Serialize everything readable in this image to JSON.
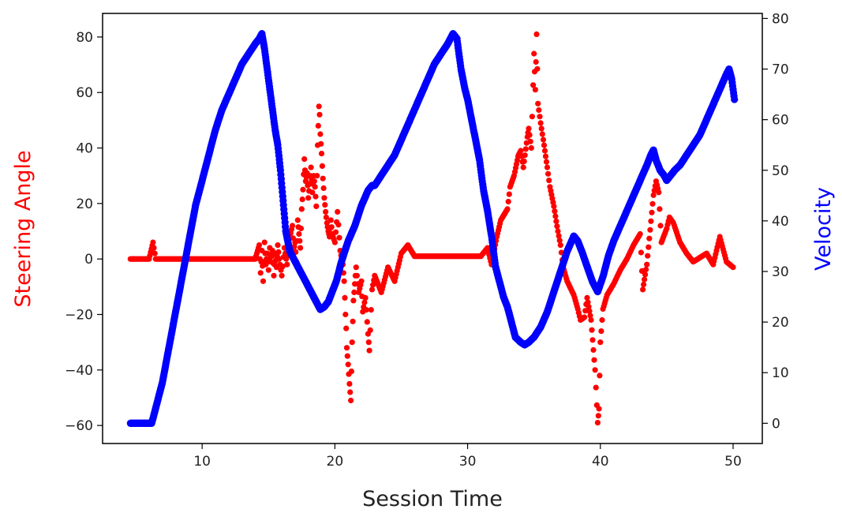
{
  "chart_data": {
    "type": "scatter",
    "title": "",
    "xlabel": "Session Time",
    "ylabel": "Steering Angle",
    "ylabel_right": "Velocity",
    "xlim": [
      2.5,
      52.2
    ],
    "ylim": [
      -66.5,
      88.5
    ],
    "ylim_right": [
      -4,
      81
    ],
    "x_ticks": [
      10,
      20,
      30,
      40,
      50
    ],
    "y_ticks_left": [
      -60,
      -40,
      -20,
      0,
      20,
      40,
      60,
      80
    ],
    "y_ticks_right": [
      0,
      10,
      20,
      30,
      40,
      50,
      60,
      70,
      80
    ],
    "grid": false,
    "colors": {
      "steering": "#ff0000",
      "velocity": "#0000ff",
      "ylabel": "#ff0000",
      "ylabel_right": "#0000ff"
    },
    "series": [
      {
        "axis": "left",
        "color": "#ff0000",
        "points": [
          [
            4.6,
            0
          ],
          [
            5.0,
            0
          ],
          [
            5.3,
            0
          ],
          [
            5.6,
            0
          ],
          [
            6.0,
            0
          ],
          [
            6.3,
            6
          ],
          [
            6.5,
            0
          ],
          [
            7,
            0
          ],
          [
            8,
            0
          ],
          [
            9,
            0
          ],
          [
            10,
            0
          ],
          [
            11,
            0
          ],
          [
            12,
            0
          ],
          [
            13,
            0
          ],
          [
            14,
            0
          ],
          [
            14.3,
            5
          ],
          [
            14.4,
            -5
          ],
          [
            14.5,
            3
          ],
          [
            14.6,
            -8
          ],
          [
            14.7,
            6
          ],
          [
            14.8,
            -2
          ],
          [
            14.9,
            2
          ],
          [
            15.0,
            -4
          ],
          [
            15.1,
            4
          ],
          [
            15.2,
            -1
          ],
          [
            15.3,
            3
          ],
          [
            15.4,
            -6
          ],
          [
            15.5,
            2
          ],
          [
            15.6,
            -3
          ],
          [
            15.7,
            5
          ],
          [
            15.8,
            0
          ],
          [
            16.0,
            -6
          ],
          [
            16.2,
            4
          ],
          [
            16.4,
            -2
          ],
          [
            16.6,
            8
          ],
          [
            16.8,
            12
          ],
          [
            16.9,
            3
          ],
          [
            17.0,
            6
          ],
          [
            17.1,
            -1
          ],
          [
            17.2,
            14
          ],
          [
            17.3,
            9
          ],
          [
            17.4,
            4
          ],
          [
            17.5,
            18
          ],
          [
            17.6,
            25
          ],
          [
            17.7,
            36
          ],
          [
            17.8,
            28
          ],
          [
            17.9,
            31
          ],
          [
            18.0,
            22
          ],
          [
            18.1,
            27
          ],
          [
            18.2,
            33
          ],
          [
            18.3,
            24
          ],
          [
            18.4,
            30
          ],
          [
            18.5,
            26
          ],
          [
            18.6,
            19
          ],
          [
            18.7,
            41
          ],
          [
            18.8,
            55
          ],
          [
            18.85,
            52
          ],
          [
            18.9,
            45
          ],
          [
            19.0,
            38
          ],
          [
            19.1,
            29
          ],
          [
            19.2,
            22
          ],
          [
            19.3,
            17
          ],
          [
            19.4,
            13
          ],
          [
            19.5,
            10
          ],
          [
            19.6,
            8
          ],
          [
            19.7,
            14
          ],
          [
            19.8,
            9
          ],
          [
            20.0,
            6
          ],
          [
            20.2,
            17
          ],
          [
            20.4,
            3
          ],
          [
            20.6,
            -2
          ],
          [
            20.7,
            -8
          ],
          [
            20.8,
            -20
          ],
          [
            20.85,
            -25
          ],
          [
            20.9,
            -32
          ],
          [
            21.0,
            -38
          ],
          [
            21.1,
            -45
          ],
          [
            21.2,
            -51
          ],
          [
            21.3,
            -30
          ],
          [
            21.4,
            -15
          ],
          [
            21.5,
            -9
          ],
          [
            21.6,
            -3
          ],
          [
            21.8,
            -12
          ],
          [
            22.0,
            -8
          ],
          [
            22.1,
            -19
          ],
          [
            22.3,
            -14
          ],
          [
            22.5,
            -27
          ],
          [
            22.6,
            -33
          ],
          [
            22.8,
            -11
          ],
          [
            23.0,
            -6
          ],
          [
            23.5,
            -12
          ],
          [
            24.0,
            -3
          ],
          [
            24.5,
            -8
          ],
          [
            25.0,
            2
          ],
          [
            25.5,
            5
          ],
          [
            26,
            1
          ],
          [
            27,
            1
          ],
          [
            28,
            1
          ],
          [
            29,
            1
          ],
          [
            30,
            1
          ],
          [
            31,
            1
          ],
          [
            31.5,
            4
          ],
          [
            31.8,
            -2
          ],
          [
            32.2,
            8
          ],
          [
            32.5,
            14
          ],
          [
            33.0,
            18
          ],
          [
            33.2,
            26
          ],
          [
            33.5,
            30
          ],
          [
            33.8,
            37
          ],
          [
            34.0,
            39
          ],
          [
            34.2,
            33
          ],
          [
            34.5,
            44
          ],
          [
            34.6,
            47
          ],
          [
            34.8,
            40
          ],
          [
            35.0,
            74
          ],
          [
            35.1,
            61
          ],
          [
            35.2,
            81
          ],
          [
            35.3,
            56
          ],
          [
            35.5,
            49
          ],
          [
            35.7,
            43
          ],
          [
            36.0,
            33
          ],
          [
            36.2,
            26
          ],
          [
            36.5,
            19
          ],
          [
            36.8,
            10
          ],
          [
            37.0,
            5
          ],
          [
            37.2,
            -3
          ],
          [
            37.5,
            -8
          ],
          [
            38.0,
            -13
          ],
          [
            38.3,
            -18
          ],
          [
            38.5,
            -22
          ],
          [
            38.8,
            -21
          ],
          [
            39.0,
            -14
          ],
          [
            39.3,
            -22
          ],
          [
            39.6,
            -40
          ],
          [
            39.8,
            -59
          ],
          [
            39.9,
            -54
          ],
          [
            40.0,
            -30
          ],
          [
            40.2,
            -18
          ],
          [
            40.5,
            -13
          ],
          [
            41.0,
            -9
          ],
          [
            41.5,
            -4
          ],
          [
            42.0,
            0
          ],
          [
            42.5,
            5
          ],
          [
            43.0,
            9
          ],
          [
            43.2,
            -11
          ],
          [
            43.5,
            -2
          ],
          [
            44.0,
            23
          ],
          [
            44.2,
            28
          ],
          [
            44.4,
            24
          ],
          [
            44.6,
            6
          ],
          [
            45.0,
            11
          ],
          [
            45.2,
            15
          ],
          [
            45.5,
            13
          ],
          [
            46.0,
            6
          ],
          [
            46.5,
            2
          ],
          [
            47.0,
            -1
          ],
          [
            48.0,
            2
          ],
          [
            48.5,
            -2
          ],
          [
            49.0,
            8
          ],
          [
            49.5,
            -1
          ],
          [
            50.0,
            -3
          ]
        ]
      },
      {
        "axis": "right",
        "color": "#0000ff",
        "points": [
          [
            4.6,
            0
          ],
          [
            5.0,
            0
          ],
          [
            5.5,
            0
          ],
          [
            6.0,
            0
          ],
          [
            6.2,
            0
          ],
          [
            6.5,
            3
          ],
          [
            7.0,
            8
          ],
          [
            7.5,
            15
          ],
          [
            8.0,
            22
          ],
          [
            8.5,
            29
          ],
          [
            9.0,
            36
          ],
          [
            9.5,
            43
          ],
          [
            10.0,
            48
          ],
          [
            10.5,
            53
          ],
          [
            11.0,
            58
          ],
          [
            11.5,
            62
          ],
          [
            12.0,
            65
          ],
          [
            12.5,
            68
          ],
          [
            13.0,
            71
          ],
          [
            13.5,
            73
          ],
          [
            14.0,
            75
          ],
          [
            14.3,
            76
          ],
          [
            14.5,
            77
          ],
          [
            14.7,
            74
          ],
          [
            14.9,
            70
          ],
          [
            15.1,
            66
          ],
          [
            15.3,
            62
          ],
          [
            15.5,
            58
          ],
          [
            15.7,
            55
          ],
          [
            15.9,
            50
          ],
          [
            16.1,
            44
          ],
          [
            16.3,
            38
          ],
          [
            16.6,
            34
          ],
          [
            17.0,
            32
          ],
          [
            17.4,
            30
          ],
          [
            17.8,
            28
          ],
          [
            18.2,
            26
          ],
          [
            18.6,
            24
          ],
          [
            18.9,
            22.5
          ],
          [
            19.2,
            23
          ],
          [
            19.5,
            24
          ],
          [
            19.8,
            26
          ],
          [
            20.1,
            28
          ],
          [
            20.5,
            32
          ],
          [
            21.0,
            36
          ],
          [
            21.5,
            39
          ],
          [
            22.0,
            43
          ],
          [
            22.5,
            46
          ],
          [
            22.8,
            47
          ],
          [
            23.0,
            47
          ],
          [
            23.5,
            49
          ],
          [
            24.0,
            51
          ],
          [
            24.5,
            53
          ],
          [
            25.0,
            56
          ],
          [
            25.5,
            59
          ],
          [
            26.0,
            62
          ],
          [
            26.5,
            65
          ],
          [
            27.0,
            68
          ],
          [
            27.5,
            71
          ],
          [
            28.0,
            73
          ],
          [
            28.5,
            75
          ],
          [
            28.9,
            77
          ],
          [
            29.2,
            76
          ],
          [
            29.5,
            70
          ],
          [
            29.8,
            66
          ],
          [
            30.0,
            64
          ],
          [
            30.3,
            60
          ],
          [
            30.6,
            56
          ],
          [
            30.9,
            52
          ],
          [
            31.2,
            46
          ],
          [
            31.5,
            42
          ],
          [
            31.8,
            37
          ],
          [
            32.1,
            31
          ],
          [
            32.4,
            28
          ],
          [
            32.7,
            25
          ],
          [
            33.0,
            23
          ],
          [
            33.3,
            20
          ],
          [
            33.6,
            17
          ],
          [
            34.0,
            16
          ],
          [
            34.3,
            15.5
          ],
          [
            34.6,
            16
          ],
          [
            35.0,
            17
          ],
          [
            35.5,
            19
          ],
          [
            36.0,
            22
          ],
          [
            36.5,
            26
          ],
          [
            37.0,
            30
          ],
          [
            37.5,
            34
          ],
          [
            38.0,
            37
          ],
          [
            38.3,
            36
          ],
          [
            38.6,
            34
          ],
          [
            39.0,
            31
          ],
          [
            39.4,
            28
          ],
          [
            39.8,
            26
          ],
          [
            40.2,
            29
          ],
          [
            40.6,
            33
          ],
          [
            41.0,
            36
          ],
          [
            41.5,
            39
          ],
          [
            42.0,
            42
          ],
          [
            42.5,
            45
          ],
          [
            43.0,
            48
          ],
          [
            43.5,
            51
          ],
          [
            43.8,
            53
          ],
          [
            44.0,
            54
          ],
          [
            44.2,
            52
          ],
          [
            44.5,
            50
          ],
          [
            44.8,
            49
          ],
          [
            45.0,
            48
          ],
          [
            45.3,
            49
          ],
          [
            45.6,
            50
          ],
          [
            46.0,
            51
          ],
          [
            46.5,
            53
          ],
          [
            47.0,
            55
          ],
          [
            47.5,
            57
          ],
          [
            48.0,
            60
          ],
          [
            48.5,
            63
          ],
          [
            49.0,
            66
          ],
          [
            49.5,
            69
          ],
          [
            49.7,
            70
          ],
          [
            49.9,
            68
          ],
          [
            50.0,
            66
          ],
          [
            50.1,
            64
          ]
        ]
      }
    ]
  }
}
